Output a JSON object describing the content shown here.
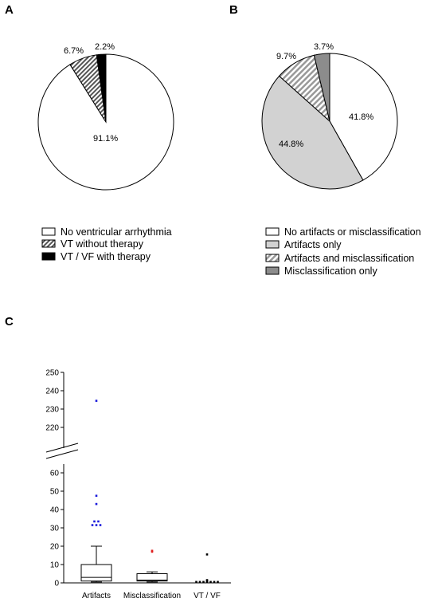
{
  "chart_data": [
    {
      "panel": "A",
      "type": "pie",
      "slices": [
        {
          "label": "No ventricular arrhythmia",
          "value": 91.1,
          "pct_label": "91.1%",
          "fill": "white"
        },
        {
          "label": "VT without therapy",
          "value": 6.7,
          "pct_label": "6.7%",
          "fill": "hatch-dark"
        },
        {
          "label": "VT / VF with therapy",
          "value": 2.2,
          "pct_label": "2.2%",
          "fill": "black"
        }
      ],
      "legend": "bottom"
    },
    {
      "panel": "B",
      "type": "pie",
      "slices": [
        {
          "label": "No artifacts or misclassification",
          "value": 41.8,
          "pct_label": "41.8%",
          "fill": "white"
        },
        {
          "label": "Artifacts only",
          "value": 44.8,
          "pct_label": "44.8%",
          "fill": "light-gray"
        },
        {
          "label": "Artifacts and misclassification",
          "value": 9.7,
          "pct_label": "9.7%",
          "fill": "hatch-light"
        },
        {
          "label": "Misclassification only",
          "value": 3.7,
          "pct_label": "3.7%",
          "fill": "gray"
        }
      ],
      "legend": "bottom"
    },
    {
      "panel": "C",
      "type": "box",
      "categories": [
        "Artifacts",
        "Misclassification",
        "VT / VF"
      ],
      "yaxis_broken": true,
      "ylim_lower": [
        0,
        60
      ],
      "ylim_upper": [
        215,
        250
      ],
      "yticks_lower": [
        0,
        10,
        20,
        30,
        40,
        50,
        60
      ],
      "yticks_upper": [
        220,
        230,
        240,
        250
      ],
      "boxes": [
        {
          "category": "Artifacts",
          "whisker_low": 0.5,
          "q1": 1,
          "median": 3,
          "q3": 10,
          "whisker_high": 20,
          "outliers": [
            31.5,
            31.5,
            31.5,
            33.5,
            33.5,
            43,
            47.5,
            234.5
          ],
          "outlier_color": "#1a1adb"
        },
        {
          "category": "Misclassification",
          "whisker_low": 0.5,
          "q1": 1,
          "median": 1.5,
          "q3": 5,
          "whisker_high": 6,
          "outliers": [
            17,
            17.5
          ],
          "outlier_color": "#e02020"
        },
        {
          "category": "VT / VF",
          "whisker_low": 0,
          "q1": 0,
          "median": 0,
          "q3": 0,
          "whisker_high": 0,
          "outliers": [
            0.5,
            0.5,
            0.5,
            0.5,
            0.5,
            0.5,
            0.5,
            1,
            1.5,
            15.5
          ],
          "outlier_color": "#000000"
        }
      ]
    }
  ],
  "panel_labels": {
    "a": "A",
    "b": "B",
    "c": "C"
  },
  "colors": {
    "light_gray": "#d2d2d2",
    "mid_gray": "#8c8c8c",
    "hatch_dark": "#555555",
    "hatch_light": "#999999"
  }
}
